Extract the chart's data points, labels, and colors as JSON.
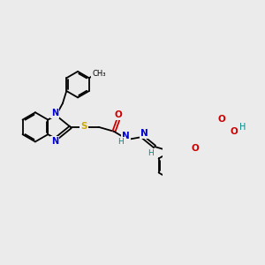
{
  "bg": "#ebebeb",
  "lw": 1.3,
  "colors": {
    "C": "#000000",
    "N": "#0000cc",
    "O": "#cc0000",
    "S": "#ccaa00",
    "H": "#008888"
  },
  "fs": 7.5,
  "dpi": 100
}
